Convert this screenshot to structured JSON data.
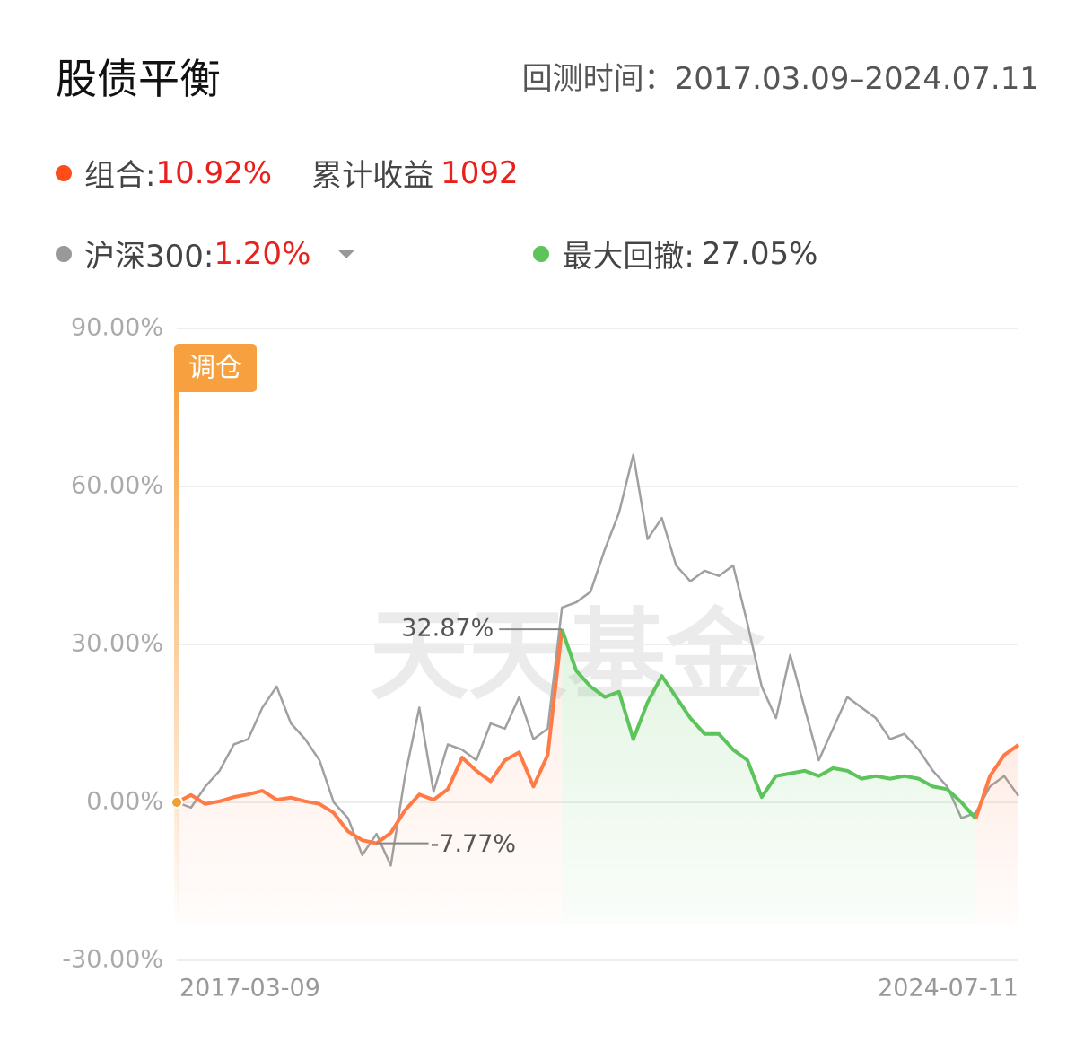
{
  "chart_data": {
    "type": "line",
    "title": "股债平衡",
    "period_label": "回测时间：",
    "period": "2017.03.09–2024.07.11",
    "cumulative_label": "累计收益",
    "cumulative_value": 1092,
    "drawdown_label": "最大回撤:",
    "drawdown_value": "27.05%",
    "drawdown_color": "#5cc45a",
    "rebalance_label": "调仓",
    "watermark": "天天基金",
    "annotations": {
      "max": "32.87%",
      "min": "-7.77%"
    },
    "categories": [
      "2017-03-09",
      null,
      null,
      null,
      null,
      null,
      null,
      null,
      null,
      null,
      null,
      null,
      null,
      null,
      null,
      null,
      null,
      null,
      null,
      null,
      null,
      null,
      null,
      null,
      null,
      null,
      null,
      null,
      null,
      null,
      null,
      null,
      null,
      null,
      null,
      null,
      null,
      null,
      null,
      null,
      null,
      null,
      null,
      null,
      null,
      null,
      null,
      null,
      null,
      null,
      null,
      null,
      null,
      null,
      null,
      null,
      null,
      null,
      null,
      "2024-07-11"
    ],
    "series": [
      {
        "name": "组合:",
        "color": "#ff7a45",
        "dot_color": "#ff4d1a",
        "return_label": "10.92%",
        "values": [
          0,
          1.4,
          -0.3,
          0.2,
          1.0,
          1.5,
          2.2,
          0.5,
          0.9,
          0.2,
          -0.3,
          -2.0,
          -5.5,
          -7.2,
          -7.77,
          -5.8,
          -1.5,
          1.5,
          0.5,
          2.5,
          8.5,
          6.0,
          4.0,
          8.0,
          9.5,
          3.0,
          9.0,
          32.87,
          25,
          22,
          20,
          21,
          12,
          19,
          24,
          20,
          16,
          13,
          13,
          10,
          8,
          1,
          5,
          5.5,
          6,
          5,
          6.5,
          6,
          4.5,
          5,
          4.5,
          5,
          4.5,
          3,
          2.5,
          0,
          -3.1,
          5,
          9,
          10.92
        ]
      },
      {
        "name": "沪深300:",
        "color": "#a0a0a0",
        "dot_color": "#999999",
        "return_label": "1.20%",
        "values": [
          0,
          -1,
          3,
          6,
          11,
          12,
          18,
          22,
          15,
          12,
          8,
          0,
          -3,
          -10,
          -6,
          -12,
          5,
          18,
          2,
          11,
          10,
          8,
          15,
          14,
          20,
          12,
          14,
          37,
          38,
          40,
          48,
          55,
          66,
          50,
          54,
          45,
          42,
          44,
          43,
          45,
          34,
          22,
          16,
          28,
          18,
          8,
          14,
          20,
          18,
          16,
          12,
          13,
          10,
          6,
          3,
          -3,
          -2,
          3,
          5,
          1.2
        ]
      }
    ],
    "ylim": [
      -30,
      90
    ],
    "yticks": [
      {
        "value": -30,
        "label": "-30.00%"
      },
      {
        "value": 0,
        "label": "0.00%"
      },
      {
        "value": 30,
        "label": "30.00%"
      },
      {
        "value": 60,
        "label": "60.00%"
      },
      {
        "value": 90,
        "label": "90.00%"
      }
    ],
    "grid": true
  }
}
